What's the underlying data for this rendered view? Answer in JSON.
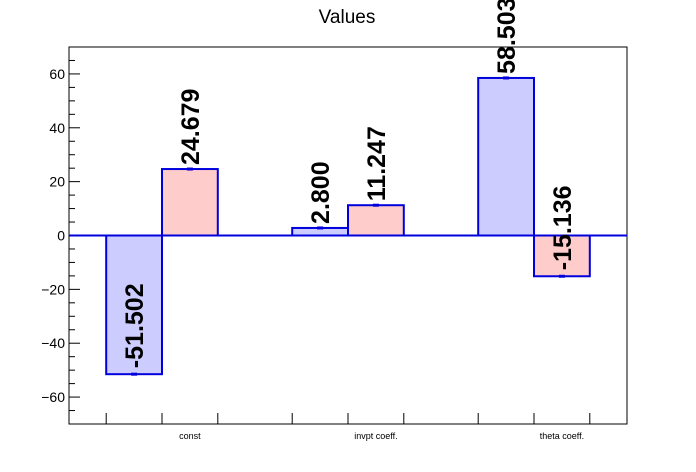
{
  "chart_data": {
    "type": "bar",
    "title": "Values",
    "categories": [
      "const",
      "invpt coeff.",
      "theta coeff."
    ],
    "series": [
      {
        "values": [
          -51.502,
          2.8,
          58.503
        ],
        "color": "#ccccff",
        "labels": [
          "-51.502",
          "2.800",
          "58.503"
        ]
      },
      {
        "values": [
          24.679,
          11.247,
          -15.136
        ],
        "color": "#ffcccc",
        "labels": [
          "24.679",
          "11.247",
          "-15.136"
        ]
      }
    ],
    "ylim": [
      -70,
      70
    ],
    "yticks": [
      -60,
      -40,
      -20,
      0,
      20,
      40,
      60
    ],
    "ytick_labels": [
      "−60",
      "−40",
      "−20",
      "0",
      "20",
      "40",
      "60"
    ],
    "edge_color": "#0000dd",
    "grid": false,
    "legend": "none"
  }
}
